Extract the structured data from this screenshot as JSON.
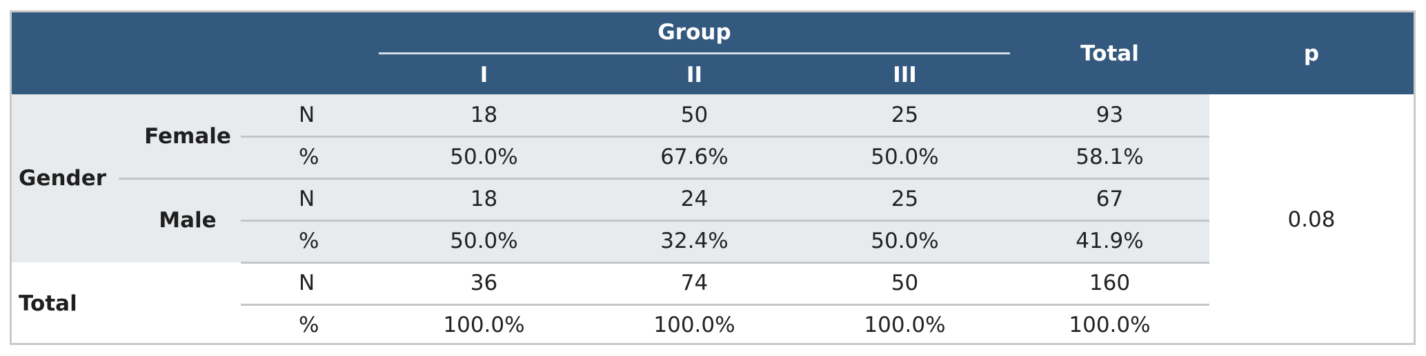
{
  "header": {
    "group": "Group",
    "groups": [
      "I",
      "II",
      "III"
    ],
    "total": "Total",
    "p": "p"
  },
  "rows": [
    {
      "var": "Gender",
      "level": "Female",
      "stat": "N",
      "values": [
        "18",
        "50",
        "25",
        "93"
      ]
    },
    {
      "var": "Gender",
      "level": "Female",
      "stat": "%",
      "values": [
        "50.0%",
        "67.6%",
        "50.0%",
        "58.1%"
      ]
    },
    {
      "var": "Gender",
      "level": "Male",
      "stat": "N",
      "values": [
        "18",
        "24",
        "25",
        "67"
      ]
    },
    {
      "var": "Gender",
      "level": "Male",
      "stat": "%",
      "values": [
        "50.0%",
        "32.4%",
        "50.0%",
        "41.9%"
      ]
    },
    {
      "var": "Total",
      "level": "",
      "stat": "N",
      "values": [
        "36",
        "74",
        "50",
        "160"
      ]
    },
    {
      "var": "Total",
      "level": "",
      "stat": "%",
      "values": [
        "100.0%",
        "100.0%",
        "100.0%",
        "100.0%"
      ]
    }
  ],
  "labels": {
    "gender": "Gender",
    "female": "Female",
    "male": "Male",
    "total_row": "Total"
  },
  "p_value": "0.08",
  "colors": {
    "header_bg": "#34597f",
    "body_shade": "#e8ebee",
    "border": "#c9c9c9"
  }
}
